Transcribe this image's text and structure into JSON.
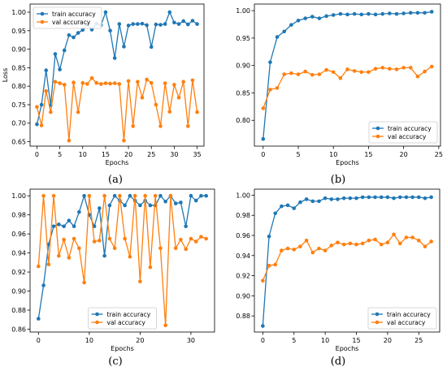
{
  "colors": {
    "train": "#1f77b4",
    "val": "#ff7f0e"
  },
  "chart_data": [
    {
      "caption": "(a)",
      "type": "line",
      "xlabel": "Epochs",
      "ylabel": "Loss",
      "xlim": [
        -1.5,
        36.5
      ],
      "ylim": [
        0.638,
        1.022
      ],
      "xticks": [
        0,
        5,
        10,
        15,
        20,
        25,
        30,
        35
      ],
      "yticks": [
        0.65,
        0.7,
        0.75,
        0.8,
        0.85,
        0.9,
        0.95,
        1.0
      ],
      "ytick_labels": [
        "0.65",
        "0.70",
        "0.75",
        "0.80",
        "0.85",
        "0.90",
        "0.95",
        "1.00"
      ],
      "legend_loc": "upper-left",
      "x": [
        0,
        1,
        2,
        3,
        4,
        5,
        6,
        7,
        8,
        9,
        10,
        11,
        12,
        13,
        14,
        15,
        16,
        17,
        18,
        19,
        20,
        21,
        22,
        23,
        24,
        25,
        26,
        27,
        28,
        29,
        30,
        31,
        32,
        33,
        34,
        35
      ],
      "series": [
        {
          "name": "train accuracy",
          "color_key": "train",
          "values": [
            0.697,
            0.75,
            0.843,
            0.748,
            0.887,
            0.845,
            0.897,
            0.938,
            0.932,
            0.944,
            0.952,
            0.968,
            0.953,
            0.969,
            0.965,
            1.0,
            0.95,
            0.876,
            0.968,
            0.907,
            0.964,
            0.968,
            0.968,
            0.969,
            0.965,
            0.906,
            0.967,
            0.966,
            0.968,
            1.0,
            0.972,
            0.968,
            0.976,
            0.967,
            0.977,
            0.968
          ]
        },
        {
          "name": "val accuracy",
          "color_key": "val",
          "values": [
            0.744,
            0.694,
            0.787,
            0.73,
            0.812,
            0.808,
            0.804,
            0.653,
            0.81,
            0.73,
            0.809,
            0.806,
            0.822,
            0.809,
            0.806,
            0.808,
            0.807,
            0.808,
            0.806,
            0.653,
            0.814,
            0.692,
            0.812,
            0.769,
            0.818,
            0.809,
            0.75,
            0.692,
            0.808,
            0.731,
            0.804,
            0.769,
            0.812,
            0.692,
            0.816,
            0.73
          ]
        }
      ]
    },
    {
      "caption": "(b)",
      "type": "line",
      "xlabel": "Epochs",
      "ylabel": "",
      "xlim": [
        -1.25,
        25.25
      ],
      "ylim": [
        0.753,
        1.012
      ],
      "xticks": [
        0,
        5,
        10,
        15,
        20,
        25
      ],
      "yticks": [
        0.8,
        0.85,
        0.9,
        0.95,
        1.0
      ],
      "ytick_labels": [
        "0.80",
        "0.85",
        "0.90",
        "0.95",
        "1.00"
      ],
      "legend_loc": "lower-right",
      "x": [
        0,
        1,
        2,
        3,
        4,
        5,
        6,
        7,
        8,
        9,
        10,
        11,
        12,
        13,
        14,
        15,
        16,
        17,
        18,
        19,
        20,
        21,
        22,
        23,
        24
      ],
      "series": [
        {
          "name": "train accuracy",
          "color_key": "train",
          "values": [
            0.766,
            0.906,
            0.952,
            0.962,
            0.974,
            0.982,
            0.986,
            0.989,
            0.986,
            0.99,
            0.992,
            0.994,
            0.993,
            0.994,
            0.993,
            0.994,
            0.993,
            0.994,
            0.995,
            0.994,
            0.995,
            0.996,
            0.996,
            0.996,
            0.998
          ]
        },
        {
          "name": "val accuracy",
          "color_key": "val",
          "values": [
            0.822,
            0.856,
            0.859,
            0.884,
            0.886,
            0.884,
            0.889,
            0.883,
            0.884,
            0.892,
            0.888,
            0.877,
            0.893,
            0.89,
            0.888,
            0.888,
            0.894,
            0.896,
            0.894,
            0.893,
            0.896,
            0.896,
            0.88,
            0.889,
            0.898
          ]
        }
      ]
    },
    {
      "caption": "(c)",
      "type": "line",
      "xlabel": "Epochs",
      "ylabel": "",
      "xlim": [
        -1.65,
        34.65
      ],
      "ylim": [
        0.857,
        1.007
      ],
      "xticks": [
        0,
        10,
        20,
        30
      ],
      "yticks": [
        0.86,
        0.88,
        0.9,
        0.92,
        0.94,
        0.96,
        0.98,
        1.0
      ],
      "ytick_labels": [
        "0.86",
        "0.88",
        "0.90",
        "0.92",
        "0.94",
        "0.96",
        "0.98",
        "1.00"
      ],
      "legend_loc": "lower-center",
      "x": [
        0,
        1,
        2,
        3,
        4,
        5,
        6,
        7,
        8,
        9,
        10,
        11,
        12,
        13,
        14,
        15,
        16,
        17,
        18,
        19,
        20,
        21,
        22,
        23,
        24,
        25,
        26,
        27,
        28,
        29,
        30,
        31,
        32,
        33
      ],
      "series": [
        {
          "name": "train accuracy",
          "color_key": "train",
          "values": [
            0.871,
            0.906,
            0.949,
            0.968,
            0.97,
            0.968,
            0.974,
            0.968,
            0.983,
            1.0,
            0.98,
            0.968,
            0.987,
            0.937,
            0.99,
            1.0,
            0.995,
            0.99,
            1.0,
            0.995,
            0.99,
            0.995,
            0.99,
            0.99,
            1.0,
            0.994,
            1.0,
            0.992,
            0.993,
            0.968,
            1.0,
            0.995,
            1.0,
            1.0
          ]
        },
        {
          "name": "val accuracy",
          "color_key": "val",
          "values": [
            0.926,
            1.0,
            0.928,
            1.0,
            0.937,
            0.954,
            0.935,
            0.955,
            0.945,
            0.909,
            1.0,
            0.952,
            0.953,
            1.0,
            0.955,
            0.945,
            1.0,
            0.955,
            0.936,
            1.0,
            0.91,
            1.0,
            0.925,
            1.0,
            0.945,
            0.864,
            1.0,
            0.945,
            0.954,
            0.944,
            0.955,
            0.952,
            0.957,
            0.955
          ]
        }
      ]
    },
    {
      "caption": "(d)",
      "type": "line",
      "xlabel": "Epochs",
      "ylabel": "",
      "xlim": [
        -1.35,
        28.35
      ],
      "ylim": [
        0.864,
        1.006
      ],
      "xticks": [
        0,
        5,
        10,
        15,
        20,
        25
      ],
      "yticks": [
        0.88,
        0.9,
        0.92,
        0.94,
        0.96,
        0.98,
        1.0
      ],
      "ytick_labels": [
        "0.88",
        "0.90",
        "0.92",
        "0.94",
        "0.96",
        "0.98",
        "1.00"
      ],
      "legend_loc": "lower-right",
      "x": [
        0,
        1,
        2,
        3,
        4,
        5,
        6,
        7,
        8,
        9,
        10,
        11,
        12,
        13,
        14,
        15,
        16,
        17,
        18,
        19,
        20,
        21,
        22,
        23,
        24,
        25,
        26,
        27
      ],
      "series": [
        {
          "name": "train accuracy",
          "color_key": "train",
          "values": [
            0.87,
            0.959,
            0.982,
            0.989,
            0.99,
            0.987,
            0.993,
            0.996,
            0.994,
            0.994,
            0.997,
            0.996,
            0.996,
            0.997,
            0.997,
            0.997,
            0.998,
            0.998,
            0.998,
            0.998,
            0.998,
            0.997,
            0.998,
            0.998,
            0.998,
            0.998,
            0.997,
            0.998
          ]
        },
        {
          "name": "val accuracy",
          "color_key": "val",
          "values": [
            0.915,
            0.93,
            0.931,
            0.945,
            0.947,
            0.946,
            0.949,
            0.955,
            0.943,
            0.947,
            0.945,
            0.95,
            0.953,
            0.951,
            0.952,
            0.951,
            0.952,
            0.955,
            0.956,
            0.951,
            0.953,
            0.961,
            0.952,
            0.958,
            0.958,
            0.955,
            0.949,
            0.954
          ]
        }
      ]
    }
  ]
}
